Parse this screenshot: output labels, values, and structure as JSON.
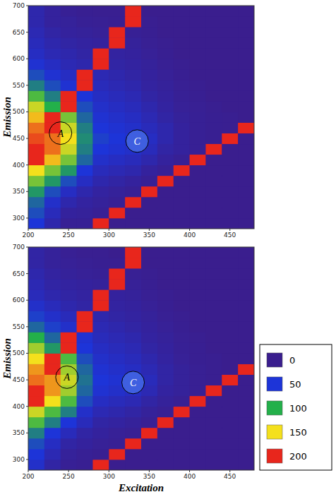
{
  "chart_data": [
    {
      "type": "heatmap",
      "y_label": "Emission",
      "xlim": [
        200,
        480
      ],
      "xticks": [
        200,
        250,
        300,
        350,
        400,
        450
      ],
      "ylim": [
        280,
        700
      ],
      "yticks": [
        300,
        350,
        400,
        450,
        500,
        550,
        600,
        650,
        700
      ],
      "x_bins": [
        200,
        220,
        240,
        260,
        280,
        300,
        320,
        340,
        360,
        380,
        400,
        420,
        440,
        460,
        480
      ],
      "y_bins": [
        280,
        300,
        320,
        340,
        360,
        380,
        400,
        420,
        440,
        460,
        480,
        500,
        520,
        540,
        560,
        580,
        600,
        620,
        640,
        660,
        680,
        700
      ],
      "cells": [
        [
          50,
          20,
          5,
          5,
          200,
          0,
          0,
          0,
          0,
          0,
          0,
          0,
          0,
          0
        ],
        [
          60,
          30,
          10,
          8,
          5,
          200,
          0,
          0,
          0,
          0,
          0,
          0,
          0,
          0
        ],
        [
          70,
          40,
          20,
          12,
          8,
          5,
          200,
          0,
          0,
          0,
          0,
          0,
          0,
          0
        ],
        [
          90,
          60,
          35,
          20,
          12,
          8,
          5,
          200,
          0,
          0,
          0,
          0,
          0,
          0
        ],
        [
          120,
          90,
          60,
          35,
          20,
          15,
          10,
          5,
          200,
          0,
          0,
          0,
          0,
          0
        ],
        [
          150,
          120,
          90,
          50,
          30,
          25,
          20,
          10,
          5,
          200,
          0,
          0,
          0,
          0
        ],
        [
          200,
          160,
          120,
          70,
          40,
          35,
          30,
          20,
          10,
          5,
          200,
          0,
          0,
          0
        ],
        [
          200,
          180,
          140,
          80,
          50,
          45,
          40,
          30,
          15,
          10,
          5,
          200,
          0,
          0
        ],
        [
          190,
          180,
          150,
          85,
          55,
          50,
          45,
          35,
          20,
          10,
          5,
          3,
          200,
          0
        ],
        [
          180,
          200,
          140,
          80,
          50,
          45,
          40,
          30,
          20,
          10,
          5,
          3,
          2,
          200
        ],
        [
          160,
          200,
          120,
          70,
          45,
          40,
          35,
          25,
          15,
          8,
          5,
          3,
          2,
          0
        ],
        [
          140,
          100,
          200,
          60,
          40,
          35,
          30,
          20,
          12,
          6,
          4,
          2,
          0,
          0
        ],
        [
          110,
          80,
          200,
          50,
          35,
          30,
          25,
          15,
          10,
          5,
          3,
          0,
          0,
          0
        ],
        [
          80,
          60,
          45,
          200,
          30,
          25,
          20,
          12,
          8,
          4,
          2,
          0,
          0,
          0
        ],
        [
          60,
          45,
          35,
          200,
          25,
          20,
          15,
          10,
          6,
          3,
          0,
          0,
          0,
          0
        ],
        [
          45,
          35,
          25,
          20,
          200,
          15,
          12,
          8,
          4,
          2,
          0,
          0,
          0,
          0
        ],
        [
          35,
          25,
          20,
          15,
          200,
          12,
          10,
          6,
          3,
          0,
          0,
          0,
          0,
          0
        ],
        [
          30,
          20,
          15,
          12,
          10,
          200,
          8,
          4,
          2,
          0,
          0,
          0,
          0,
          0
        ],
        [
          25,
          15,
          10,
          8,
          6,
          200,
          5,
          3,
          0,
          0,
          0,
          0,
          0,
          0
        ],
        [
          20,
          10,
          8,
          5,
          4,
          3,
          200,
          2,
          0,
          0,
          0,
          0,
          0,
          0
        ],
        [
          20,
          10,
          5,
          3,
          2,
          2,
          200,
          0,
          0,
          0,
          0,
          0,
          0,
          0
        ]
      ],
      "annotations": [
        {
          "text": "A",
          "x": 240,
          "y": 460
        },
        {
          "text": "C",
          "x": 335,
          "y": 445
        }
      ]
    },
    {
      "type": "heatmap",
      "x_label": "Excitation",
      "y_label": "Emission",
      "xlim": [
        200,
        480
      ],
      "xticks": [
        200,
        250,
        300,
        350,
        400,
        450
      ],
      "ylim": [
        280,
        700
      ],
      "yticks": [
        300,
        350,
        400,
        450,
        500,
        550,
        600,
        650,
        700
      ],
      "x_bins": [
        200,
        220,
        240,
        260,
        280,
        300,
        320,
        340,
        360,
        380,
        400,
        420,
        440,
        460,
        480
      ],
      "y_bins": [
        280,
        300,
        320,
        340,
        360,
        380,
        400,
        420,
        440,
        460,
        480,
        500,
        520,
        540,
        560,
        580,
        600,
        620,
        640,
        660,
        680,
        700
      ],
      "cells": [
        [
          40,
          15,
          5,
          3,
          200,
          0,
          0,
          0,
          0,
          0,
          0,
          0,
          0,
          0
        ],
        [
          50,
          25,
          8,
          5,
          3,
          200,
          0,
          0,
          0,
          0,
          0,
          0,
          0,
          0
        ],
        [
          60,
          35,
          15,
          10,
          6,
          4,
          200,
          0,
          0,
          0,
          0,
          0,
          0,
          0
        ],
        [
          80,
          50,
          30,
          15,
          10,
          6,
          4,
          200,
          0,
          0,
          0,
          0,
          0,
          0
        ],
        [
          110,
          80,
          50,
          30,
          15,
          12,
          8,
          4,
          200,
          0,
          0,
          0,
          0,
          0
        ],
        [
          140,
          110,
          80,
          40,
          25,
          20,
          15,
          8,
          4,
          200,
          0,
          0,
          0,
          0
        ],
        [
          200,
          150,
          110,
          60,
          35,
          30,
          25,
          15,
          8,
          4,
          200,
          0,
          0,
          0
        ],
        [
          200,
          170,
          130,
          70,
          45,
          40,
          35,
          25,
          12,
          8,
          4,
          200,
          0,
          0
        ],
        [
          180,
          170,
          140,
          75,
          50,
          45,
          40,
          30,
          15,
          8,
          4,
          2,
          200,
          0
        ],
        [
          170,
          200,
          130,
          70,
          45,
          40,
          35,
          25,
          15,
          8,
          4,
          2,
          0,
          200
        ],
        [
          150,
          200,
          110,
          60,
          40,
          35,
          30,
          20,
          12,
          6,
          3,
          2,
          0,
          0
        ],
        [
          130,
          90,
          200,
          50,
          35,
          30,
          25,
          15,
          10,
          5,
          3,
          0,
          0,
          0
        ],
        [
          100,
          70,
          200,
          45,
          30,
          25,
          20,
          12,
          8,
          4,
          2,
          0,
          0,
          0
        ],
        [
          70,
          55,
          40,
          200,
          25,
          20,
          15,
          10,
          6,
          3,
          0,
          0,
          0,
          0
        ],
        [
          55,
          40,
          30,
          200,
          20,
          15,
          12,
          8,
          4,
          2,
          0,
          0,
          0,
          0
        ],
        [
          40,
          30,
          20,
          15,
          200,
          12,
          10,
          6,
          3,
          0,
          0,
          0,
          0,
          0
        ],
        [
          30,
          20,
          15,
          12,
          200,
          10,
          8,
          4,
          2,
          0,
          0,
          0,
          0,
          0
        ],
        [
          25,
          15,
          12,
          10,
          8,
          200,
          6,
          3,
          0,
          0,
          0,
          0,
          0,
          0
        ],
        [
          20,
          12,
          8,
          6,
          5,
          200,
          4,
          2,
          0,
          0,
          0,
          0,
          0,
          0
        ],
        [
          15,
          8,
          6,
          4,
          3,
          2,
          200,
          0,
          0,
          0,
          0,
          0,
          0,
          0
        ],
        [
          15,
          8,
          4,
          2,
          2,
          0,
          200,
          0,
          0,
          0,
          0,
          0,
          0,
          0
        ]
      ],
      "annotations": [
        {
          "text": "A",
          "x": 248,
          "y": 455
        },
        {
          "text": "C",
          "x": 330,
          "y": 445
        }
      ],
      "colorbar": {
        "ticks": [
          0,
          50,
          100,
          150,
          200
        ],
        "colors": [
          "#3a1e8e",
          "#1d34d8",
          "#23b04a",
          "#f4e01c",
          "#e8261c"
        ]
      }
    }
  ]
}
